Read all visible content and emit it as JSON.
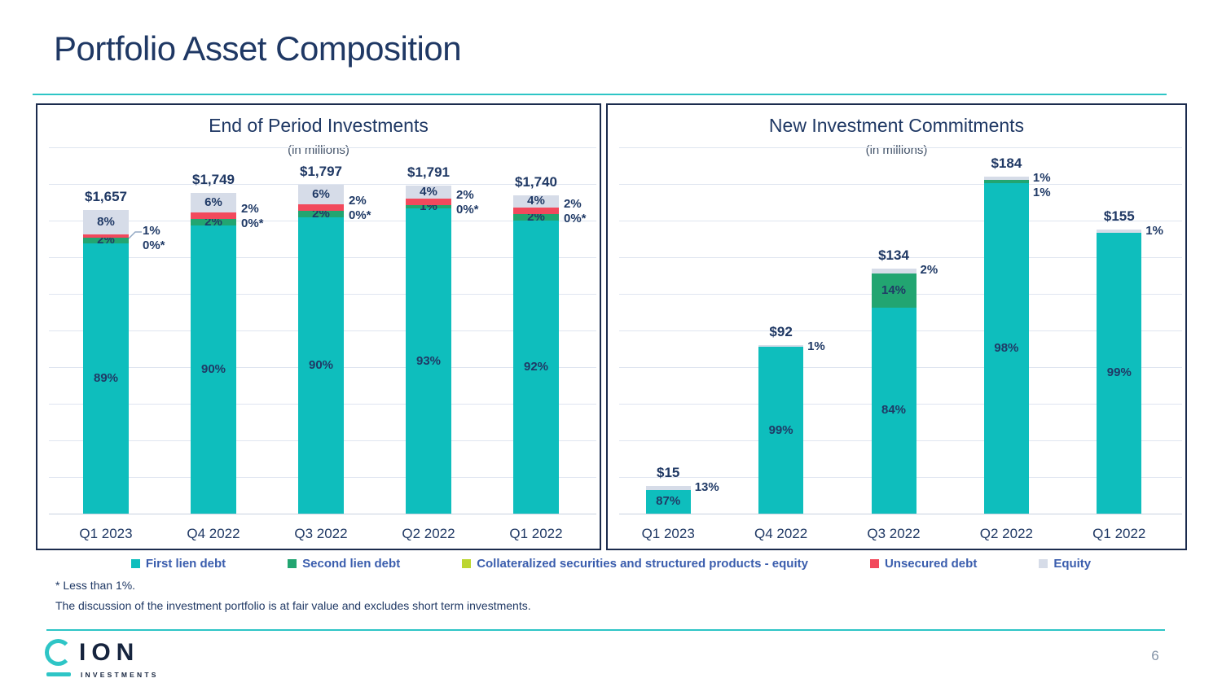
{
  "page": {
    "title": "Portfolio Asset Composition",
    "page_number": "6",
    "footnote1": "* Less than 1%.",
    "footnote2": "The discussion of the investment portfolio is at fair value and excludes short term investments.",
    "logo": {
      "ion": "ION",
      "investments": "INVESTMENTS"
    }
  },
  "colors": {
    "first_lien": "#0EBEBD",
    "second_lien": "#22A571",
    "collateralized": "#BCD631",
    "unsecured": "#F2495C",
    "equity": "#D6DCE8",
    "accent_teal": "#2EC5C6",
    "navy": "#1F3864",
    "legend_text": "#3A5DAD"
  },
  "legend": [
    {
      "label": "First lien debt",
      "color_key": "first_lien"
    },
    {
      "label": "Second lien debt",
      "color_key": "second_lien"
    },
    {
      "label": "Collateralized securities and structured products - equity",
      "color_key": "collateralized"
    },
    {
      "label": "Unsecured debt",
      "color_key": "unsecured"
    },
    {
      "label": "Equity",
      "color_key": "equity"
    }
  ],
  "chart_data": [
    {
      "type": "bar",
      "stacked": true,
      "title": "End of Period Investments",
      "subtitle": "(in millions)",
      "unit": "USD millions",
      "categories": [
        "Q1 2023",
        "Q4 2022",
        "Q3 2022",
        "Q2 2022",
        "Q1 2022"
      ],
      "totals": [
        1657,
        1749,
        1797,
        1791,
        1740
      ],
      "total_labels": [
        "$1,657",
        "$1,749",
        "$1,797",
        "$1,791",
        "$1,740"
      ],
      "axis": {
        "min": 0,
        "max": 2000,
        "step": 200,
        "gridlines": true
      },
      "series": [
        {
          "name": "First lien debt",
          "values_pct": [
            89,
            90,
            90,
            93,
            92
          ]
        },
        {
          "name": "Second lien debt",
          "values_pct": [
            2,
            2,
            2,
            1,
            2
          ]
        },
        {
          "name": "Unsecured debt",
          "values_pct": [
            1,
            2,
            2,
            2,
            2
          ]
        },
        {
          "name": "Collateralized securities and structured products - equity",
          "values_pct": [
            0,
            0,
            0,
            0,
            0
          ],
          "note": "shown as 0%*"
        },
        {
          "name": "Equity",
          "values_pct": [
            8,
            6,
            6,
            4,
            4
          ]
        }
      ],
      "bars": [
        {
          "category": "Q1 2023",
          "total": 1657,
          "total_label": "$1,657",
          "segments": [
            {
              "key": "first_lien",
              "pct": 89,
              "label": "89%"
            },
            {
              "key": "second_lien",
              "pct": 2,
              "label": "2%"
            },
            {
              "key": "unsecured",
              "pct": 1
            },
            {
              "key": "equity",
              "pct": 8,
              "label": "8%"
            }
          ],
          "side_labels": [
            "1%",
            "0%*"
          ],
          "leader": true
        },
        {
          "category": "Q4 2022",
          "total": 1749,
          "total_label": "$1,749",
          "segments": [
            {
              "key": "first_lien",
              "pct": 90,
              "label": "90%"
            },
            {
              "key": "second_lien",
              "pct": 2,
              "label": "2%"
            },
            {
              "key": "unsecured",
              "pct": 2
            },
            {
              "key": "equity",
              "pct": 6,
              "label": "6%"
            }
          ],
          "side_labels": [
            "2%",
            "0%*"
          ]
        },
        {
          "category": "Q3 2022",
          "total": 1797,
          "total_label": "$1,797",
          "segments": [
            {
              "key": "first_lien",
              "pct": 90,
              "label": "90%"
            },
            {
              "key": "second_lien",
              "pct": 2,
              "label": "2%"
            },
            {
              "key": "unsecured",
              "pct": 2
            },
            {
              "key": "equity",
              "pct": 6,
              "label": "6%"
            }
          ],
          "side_labels": [
            "2%",
            "0%*"
          ]
        },
        {
          "category": "Q2 2022",
          "total": 1791,
          "total_label": "$1,791",
          "segments": [
            {
              "key": "first_lien",
              "pct": 93,
              "label": "93%"
            },
            {
              "key": "second_lien",
              "pct": 1,
              "label": "1%"
            },
            {
              "key": "unsecured",
              "pct": 2
            },
            {
              "key": "equity",
              "pct": 4,
              "label": "4%"
            }
          ],
          "side_labels": [
            "2%",
            "0%*"
          ]
        },
        {
          "category": "Q1 2022",
          "total": 1740,
          "total_label": "$1,740",
          "segments": [
            {
              "key": "first_lien",
              "pct": 92,
              "label": "92%"
            },
            {
              "key": "second_lien",
              "pct": 2,
              "label": "2%"
            },
            {
              "key": "unsecured",
              "pct": 2
            },
            {
              "key": "equity",
              "pct": 4,
              "label": "4%"
            }
          ],
          "side_labels": [
            "2%",
            "0%*"
          ]
        }
      ]
    },
    {
      "type": "bar",
      "stacked": true,
      "title": "New Investment Commitments",
      "subtitle": "(in millions)",
      "unit": "USD millions",
      "categories": [
        "Q1 2023",
        "Q4 2022",
        "Q3 2022",
        "Q2 2022",
        "Q1 2022"
      ],
      "totals": [
        15,
        92,
        134,
        184,
        155
      ],
      "total_labels": [
        "$15",
        "$92",
        "$134",
        "$184",
        "$155"
      ],
      "axis": {
        "min": 0,
        "max": 200,
        "step": 20,
        "gridlines": true
      },
      "series": [
        {
          "name": "First lien debt",
          "values_pct": [
            87,
            99,
            84,
            98,
            99
          ]
        },
        {
          "name": "Second lien debt",
          "values_pct": [
            0,
            0,
            14,
            1,
            0
          ]
        },
        {
          "name": "Equity",
          "values_pct": [
            13,
            1,
            2,
            1,
            1
          ]
        }
      ],
      "bars": [
        {
          "category": "Q1 2023",
          "total": 15,
          "total_label": "$15",
          "segments": [
            {
              "key": "first_lien",
              "pct": 87,
              "label": "87%"
            },
            {
              "key": "equity",
              "pct": 13
            }
          ],
          "side_labels": [
            "13%"
          ]
        },
        {
          "category": "Q4 2022",
          "total": 92,
          "total_label": "$92",
          "segments": [
            {
              "key": "first_lien",
              "pct": 99,
              "label": "99%"
            },
            {
              "key": "equity",
              "pct": 1
            }
          ],
          "side_labels": [
            "1%"
          ]
        },
        {
          "category": "Q3 2022",
          "total": 134,
          "total_label": "$134",
          "segments": [
            {
              "key": "first_lien",
              "pct": 84,
              "label": "84%"
            },
            {
              "key": "second_lien",
              "pct": 14,
              "label": "14%"
            },
            {
              "key": "equity",
              "pct": 2
            }
          ],
          "side_labels": [
            "2%"
          ]
        },
        {
          "category": "Q2 2022",
          "total": 184,
          "total_label": "$184",
          "segments": [
            {
              "key": "first_lien",
              "pct": 98,
              "label": "98%"
            },
            {
              "key": "second_lien",
              "pct": 1
            },
            {
              "key": "equity",
              "pct": 1
            }
          ],
          "side_labels": [
            "1%",
            "1%"
          ]
        },
        {
          "category": "Q1 2022",
          "total": 155,
          "total_label": "$155",
          "segments": [
            {
              "key": "first_lien",
              "pct": 99,
              "label": "99%"
            },
            {
              "key": "equity",
              "pct": 1
            }
          ],
          "side_labels": [
            "1%"
          ]
        }
      ]
    }
  ]
}
